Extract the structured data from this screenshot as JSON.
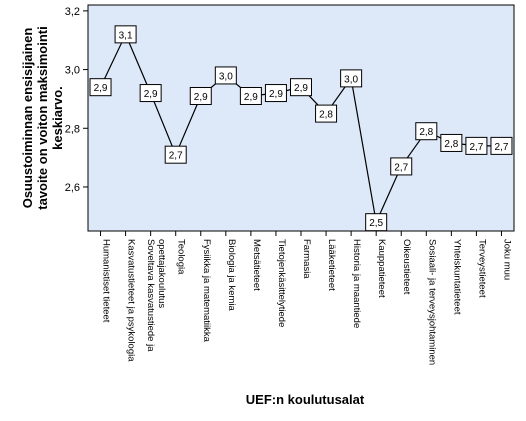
{
  "chart_data": {
    "type": "line",
    "xlabel": "UEF:n koulutusalat",
    "ylabel_lines": [
      "Osuustoiminnan ensisijainen",
      "tavoite on voiton maksimointi",
      "keskiarvo."
    ],
    "ylim": [
      2.45,
      3.22
    ],
    "yticks": [
      2.6,
      2.8,
      3.0,
      3.2
    ],
    "ytick_labels": [
      "2,6",
      "2,8",
      "3,0",
      "3,2"
    ],
    "categories": [
      [
        "Humanistiset tieteet"
      ],
      [
        "Kasvatustieteet ja psykologia"
      ],
      [
        "Soveltava kasvatustiede ja",
        "opettajakoulutus"
      ],
      [
        "Teologia"
      ],
      [
        "Fysiikka ja matematiikka"
      ],
      [
        "Biologia ja kemia"
      ],
      [
        "Metsätieteet"
      ],
      [
        "Tietojenkäsittelytiede"
      ],
      [
        "Farmasia"
      ],
      [
        "Lääketieteet"
      ],
      [
        "Historia ja maantiede"
      ],
      [
        "Kauppatieteet"
      ],
      [
        "Oikeustieteet"
      ],
      [
        "Sosiaali- ja terveysjohtaminen"
      ],
      [
        "Yhteiskuntatieteet"
      ],
      [
        "Terveystieteet"
      ],
      [
        "Joku muu"
      ]
    ],
    "values": [
      2.94,
      3.12,
      2.92,
      2.71,
      2.91,
      2.98,
      2.91,
      2.92,
      2.94,
      2.85,
      2.97,
      2.48,
      2.67,
      2.79,
      2.75,
      2.74,
      2.74
    ],
    "value_labels": [
      "2,9",
      "3,1",
      "2,9",
      "2,7",
      "2,9",
      "3,0",
      "2,9",
      "2,9",
      "2,9",
      "2,8",
      "3,0",
      "2,5",
      "2,7",
      "2,8",
      "2,8",
      "2,7",
      "2,7"
    ],
    "colors": {
      "plot_background": "#dde8f8",
      "line": "#000000",
      "label_box": "#ffffff"
    }
  }
}
